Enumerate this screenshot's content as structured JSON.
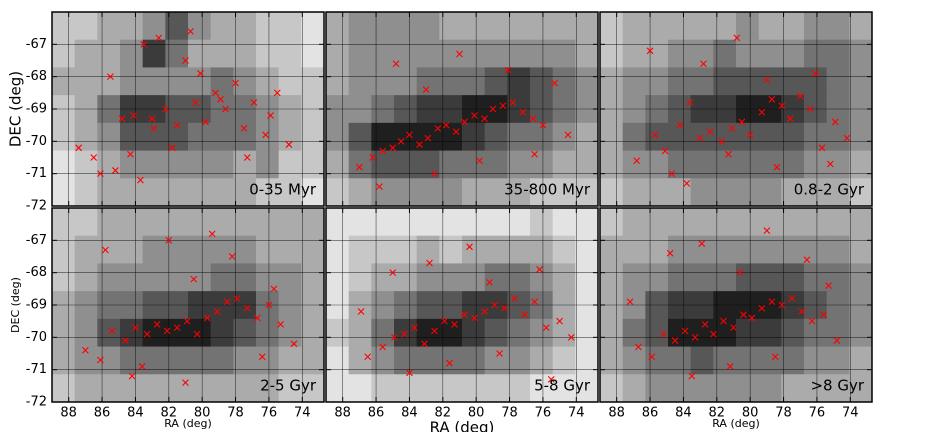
{
  "chart_data": [
    {
      "type": "scatter",
      "label": "0-35 Myr",
      "ylabel": "DEC (deg)",
      "xlim": [
        89,
        72.7
      ],
      "ylim": [
        -72,
        -66
      ],
      "xticks": [
        88,
        86,
        84,
        82,
        80,
        78,
        76,
        74
      ],
      "yticks": [
        -72,
        -71,
        -70,
        -69,
        -68,
        -67
      ],
      "xtick_labels": false,
      "ytick_labels": true,
      "grid": true,
      "color": "#ff0000",
      "marker": "x",
      "image": [
        [
          2,
          2,
          3,
          3,
          4,
          6,
          4,
          3,
          3,
          2,
          2,
          1
        ],
        [
          2,
          3,
          3,
          4,
          7,
          5,
          3,
          3,
          3,
          2,
          2,
          1
        ],
        [
          3,
          3,
          3,
          4,
          4,
          4,
          4,
          5,
          4,
          3,
          2,
          2
        ],
        [
          2,
          3,
          5,
          7,
          7,
          6,
          6,
          5,
          5,
          4,
          3,
          2
        ],
        [
          2,
          3,
          4,
          6,
          6,
          6,
          5,
          5,
          5,
          4,
          3,
          2
        ],
        [
          1,
          2,
          3,
          4,
          4,
          4,
          4,
          4,
          3,
          4,
          2,
          2
        ],
        [
          1,
          2,
          3,
          3,
          3,
          3,
          3,
          3,
          3,
          2,
          2,
          1
        ]
      ],
      "x": [
        86.5,
        85.2,
        84.8,
        84.1,
        83.5,
        83.0,
        82.6,
        82.2,
        81.5,
        81.0,
        80.4,
        79.8,
        79.2,
        78.6,
        78.0,
        77.5,
        76.9,
        76.2,
        75.5,
        74.8,
        87.4,
        86.1,
        85.5,
        84.3,
        82.9,
        81.8,
        80.1,
        78.9,
        77.3,
        75.9,
        83.7,
        80.7
      ],
      "y": [
        -70.5,
        -70.9,
        -69.3,
        -69.2,
        -67.0,
        -69.3,
        -66.8,
        -69.0,
        -69.5,
        -67.5,
        -68.8,
        -69.4,
        -68.5,
        -69.0,
        -68.2,
        -69.6,
        -68.8,
        -69.8,
        -68.5,
        -70.1,
        -70.2,
        -71.0,
        -68.0,
        -70.4,
        -69.6,
        -70.2,
        -67.9,
        -68.7,
        -70.5,
        -69.2,
        -71.2,
        -66.6
      ]
    },
    {
      "type": "scatter",
      "label": "35-800 Myr",
      "xlim": [
        89,
        72.7
      ],
      "ylim": [
        -72,
        -66
      ],
      "xticks": [
        88,
        86,
        84,
        82,
        80,
        78,
        76,
        74
      ],
      "yticks": [
        -72,
        -71,
        -70,
        -69,
        -68,
        -67
      ],
      "xtick_labels": false,
      "ytick_labels": false,
      "grid": true,
      "color": "#ff0000",
      "marker": "x",
      "image": [
        [
          3,
          4,
          4,
          4,
          4,
          3,
          3,
          3,
          3,
          3,
          3,
          3
        ],
        [
          3,
          4,
          4,
          4,
          4,
          4,
          4,
          4,
          4,
          4,
          4,
          3
        ],
        [
          3,
          4,
          4,
          4,
          5,
          5,
          5,
          6,
          7,
          6,
          5,
          4
        ],
        [
          4,
          4,
          5,
          6,
          7,
          7,
          8,
          8,
          7,
          6,
          5,
          4
        ],
        [
          4,
          6,
          8,
          8,
          8,
          8,
          7,
          6,
          5,
          5,
          4,
          3
        ],
        [
          3,
          5,
          6,
          6,
          6,
          5,
          5,
          5,
          4,
          4,
          3,
          3
        ],
        [
          2,
          3,
          4,
          4,
          4,
          4,
          3,
          3,
          3,
          2,
          2,
          2
        ]
      ],
      "x": [
        86.2,
        85.6,
        85.0,
        84.5,
        84.0,
        83.4,
        82.9,
        82.3,
        81.8,
        81.2,
        80.7,
        80.1,
        79.5,
        79.0,
        78.4,
        77.8,
        77.2,
        76.6,
        76.0,
        75.3,
        87.0,
        84.8,
        83.0,
        81.0,
        79.8,
        78.1,
        76.5,
        74.5,
        82.5,
        85.8
      ],
      "y": [
        -70.5,
        -70.3,
        -70.2,
        -70.0,
        -69.8,
        -70.1,
        -69.9,
        -69.6,
        -69.5,
        -69.7,
        -69.4,
        -69.2,
        -69.3,
        -69.0,
        -68.9,
        -68.8,
        -69.1,
        -69.3,
        -69.5,
        -68.2,
        -70.8,
        -67.6,
        -68.4,
        -67.3,
        -70.6,
        -67.8,
        -70.4,
        -69.8,
        -71.0,
        -71.4
      ]
    },
    {
      "type": "scatter",
      "label": "0.8-2 Gyr",
      "xlim": [
        89,
        72.7
      ],
      "ylim": [
        -72,
        -66
      ],
      "xticks": [
        88,
        86,
        84,
        82,
        80,
        78,
        76,
        74
      ],
      "yticks": [
        -72,
        -71,
        -70,
        -69,
        -68,
        -67
      ],
      "xtick_labels": false,
      "ytick_labels": false,
      "grid": true,
      "color": "#ff0000",
      "marker": "x",
      "image": [
        [
          2,
          3,
          3,
          3,
          3,
          3,
          4,
          3,
          3,
          4,
          4,
          3
        ],
        [
          2,
          3,
          3,
          4,
          4,
          5,
          4,
          4,
          4,
          5,
          5,
          4
        ],
        [
          3,
          4,
          4,
          5,
          5,
          6,
          6,
          6,
          6,
          6,
          5,
          4
        ],
        [
          3,
          4,
          5,
          6,
          7,
          7,
          8,
          8,
          7,
          6,
          5,
          4
        ],
        [
          3,
          5,
          6,
          6,
          6,
          6,
          6,
          6,
          6,
          5,
          5,
          4
        ],
        [
          3,
          4,
          4,
          5,
          5,
          5,
          5,
          5,
          5,
          4,
          4,
          3
        ],
        [
          2,
          3,
          3,
          3,
          4,
          4,
          4,
          4,
          3,
          3,
          3,
          2
        ]
      ],
      "x": [
        86.8,
        85.7,
        85.1,
        84.2,
        83.6,
        83.0,
        82.4,
        81.7,
        81.1,
        80.5,
        80.0,
        79.3,
        78.7,
        78.1,
        77.6,
        77.0,
        76.4,
        75.7,
        74.9,
        74.2,
        86.0,
        84.7,
        82.8,
        80.8,
        78.4,
        76.1,
        83.8,
        81.3,
        79.0,
        75.2
      ],
      "y": [
        -70.6,
        -69.8,
        -70.3,
        -69.5,
        -68.8,
        -69.9,
        -69.7,
        -70.0,
        -69.6,
        -69.4,
        -69.8,
        -69.1,
        -68.7,
        -68.9,
        -69.3,
        -68.6,
        -69.0,
        -70.2,
        -69.4,
        -69.9,
        -67.2,
        -71.0,
        -67.6,
        -66.8,
        -70.8,
        -67.9,
        -71.3,
        -70.4,
        -68.1,
        -70.7
      ]
    },
    {
      "type": "scatter",
      "label": "2-5 Gyr",
      "xlabel": "RA (deg)",
      "ylabel": "DEC (deg)",
      "xlim": [
        89,
        72.7
      ],
      "ylim": [
        -72,
        -66
      ],
      "xticks": [
        88,
        86,
        84,
        82,
        80,
        78,
        76,
        74
      ],
      "yticks": [
        -72,
        -71,
        -70,
        -69,
        -68,
        -67
      ],
      "xtick_labels": true,
      "ytick_labels": true,
      "grid": true,
      "color": "#ff0000",
      "marker": "x",
      "image": [
        [
          2,
          2,
          3,
          3,
          3,
          3,
          3,
          3,
          3,
          3,
          3,
          3
        ],
        [
          2,
          3,
          3,
          3,
          4,
          4,
          4,
          4,
          4,
          3,
          3,
          3
        ],
        [
          2,
          3,
          4,
          4,
          4,
          4,
          4,
          5,
          5,
          4,
          4,
          3
        ],
        [
          3,
          4,
          5,
          5,
          6,
          6,
          7,
          7,
          7,
          5,
          4,
          3
        ],
        [
          3,
          4,
          6,
          7,
          8,
          8,
          8,
          7,
          6,
          5,
          4,
          3
        ],
        [
          3,
          4,
          4,
          5,
          5,
          5,
          5,
          5,
          4,
          4,
          3,
          3
        ],
        [
          2,
          3,
          3,
          3,
          3,
          3,
          3,
          3,
          3,
          3,
          2,
          2
        ]
      ],
      "x": [
        87.0,
        86.1,
        85.4,
        84.6,
        84.0,
        83.3,
        82.7,
        82.1,
        81.5,
        80.9,
        80.3,
        79.7,
        79.1,
        78.5,
        77.9,
        77.3,
        76.7,
        76.0,
        75.3,
        74.5,
        85.8,
        84.2,
        82.0,
        80.5,
        78.2,
        76.4,
        83.6,
        81.0,
        79.4,
        75.7
      ],
      "y": [
        -70.4,
        -70.7,
        -69.8,
        -70.1,
        -69.7,
        -69.9,
        -69.6,
        -69.8,
        -69.7,
        -69.5,
        -69.9,
        -69.4,
        -69.2,
        -68.9,
        -68.8,
        -69.1,
        -69.4,
        -69.0,
        -69.6,
        -70.2,
        -67.3,
        -71.2,
        -67.0,
        -68.2,
        -67.5,
        -70.6,
        -70.9,
        -71.4,
        -66.8,
        -68.5
      ]
    },
    {
      "type": "scatter",
      "label": "5-8 Gyr",
      "xlabel": "RA (deg)",
      "xlim": [
        89,
        72.7
      ],
      "ylim": [
        -72,
        -66
      ],
      "xticks": [
        88,
        86,
        84,
        82,
        80,
        78,
        76,
        74
      ],
      "yticks": [
        -72,
        -71,
        -70,
        -69,
        -68,
        -67
      ],
      "xtick_labels": true,
      "ytick_labels": false,
      "grid": true,
      "color": "#ff0000",
      "marker": "x",
      "image": [
        [
          1,
          1,
          1,
          1,
          1,
          1,
          1,
          1,
          1,
          2,
          1,
          1
        ],
        [
          1,
          2,
          2,
          2,
          3,
          2,
          3,
          3,
          3,
          3,
          2,
          1
        ],
        [
          1,
          2,
          3,
          3,
          4,
          4,
          4,
          5,
          5,
          4,
          3,
          1
        ],
        [
          1,
          3,
          4,
          5,
          6,
          6,
          7,
          7,
          6,
          5,
          3,
          1
        ],
        [
          2,
          3,
          5,
          7,
          8,
          8,
          7,
          6,
          5,
          4,
          3,
          1
        ],
        [
          1,
          3,
          4,
          5,
          5,
          5,
          5,
          4,
          4,
          3,
          2,
          1
        ],
        [
          1,
          1,
          2,
          2,
          2,
          2,
          2,
          2,
          2,
          1,
          1,
          1
        ]
      ],
      "x": [
        86.5,
        85.6,
        84.9,
        84.3,
        83.7,
        83.1,
        82.5,
        81.9,
        81.3,
        80.7,
        80.1,
        79.5,
        78.9,
        78.3,
        77.7,
        77.1,
        76.5,
        75.8,
        75.0,
        74.3,
        86.9,
        85.0,
        82.8,
        80.4,
        78.6,
        76.2,
        84.0,
        81.6,
        79.2,
        75.5
      ],
      "y": [
        -70.6,
        -70.3,
        -70.0,
        -69.9,
        -69.7,
        -70.2,
        -69.8,
        -69.5,
        -69.6,
        -69.3,
        -69.4,
        -69.2,
        -69.0,
        -69.1,
        -68.8,
        -69.3,
        -68.9,
        -69.7,
        -69.5,
        -70.0,
        -69.2,
        -68.0,
        -67.7,
        -67.2,
        -70.5,
        -67.9,
        -71.1,
        -70.8,
        -68.3,
        -71.3
      ]
    },
    {
      "type": "scatter",
      "label": ">8 Gyr",
      "xlabel": "RA (deg)",
      "xlim": [
        89,
        72.7
      ],
      "ylim": [
        -72,
        -66
      ],
      "xticks": [
        88,
        86,
        84,
        82,
        80,
        78,
        76,
        74
      ],
      "yticks": [
        -72,
        -71,
        -70,
        -69,
        -68,
        -67
      ],
      "xtick_labels": true,
      "ytick_labels": false,
      "grid": true,
      "color": "#ff0000",
      "marker": "x",
      "image": [
        [
          2,
          3,
          3,
          3,
          3,
          3,
          3,
          3,
          3,
          3,
          3,
          3
        ],
        [
          3,
          3,
          3,
          4,
          4,
          4,
          4,
          4,
          4,
          4,
          4,
          3
        ],
        [
          3,
          4,
          4,
          5,
          5,
          5,
          6,
          6,
          6,
          5,
          5,
          4
        ],
        [
          3,
          4,
          6,
          7,
          7,
          8,
          8,
          8,
          7,
          6,
          5,
          4
        ],
        [
          3,
          5,
          6,
          8,
          8,
          8,
          7,
          7,
          6,
          5,
          5,
          4
        ],
        [
          3,
          4,
          5,
          5,
          6,
          5,
          5,
          5,
          5,
          4,
          4,
          3
        ],
        [
          2,
          3,
          4,
          4,
          4,
          4,
          4,
          4,
          3,
          3,
          3,
          3
        ]
      ],
      "x": [
        86.7,
        85.9,
        85.2,
        84.5,
        83.9,
        83.3,
        82.7,
        82.2,
        81.6,
        81.0,
        80.4,
        79.9,
        79.3,
        78.7,
        78.1,
        77.5,
        76.9,
        76.3,
        75.6,
        74.8,
        87.2,
        84.8,
        82.9,
        80.6,
        78.5,
        76.6,
        83.5,
        81.2,
        79.0,
        75.3
      ],
      "y": [
        -70.3,
        -70.6,
        -69.9,
        -70.1,
        -69.8,
        -70.0,
        -69.6,
        -69.9,
        -69.5,
        -69.7,
        -69.3,
        -69.4,
        -69.1,
        -68.9,
        -69.0,
        -68.8,
        -69.2,
        -69.5,
        -69.3,
        -70.1,
        -68.9,
        -67.4,
        -67.1,
        -68.0,
        -70.6,
        -67.6,
        -71.2,
        -70.9,
        -66.7,
        -68.4
      ]
    }
  ]
}
